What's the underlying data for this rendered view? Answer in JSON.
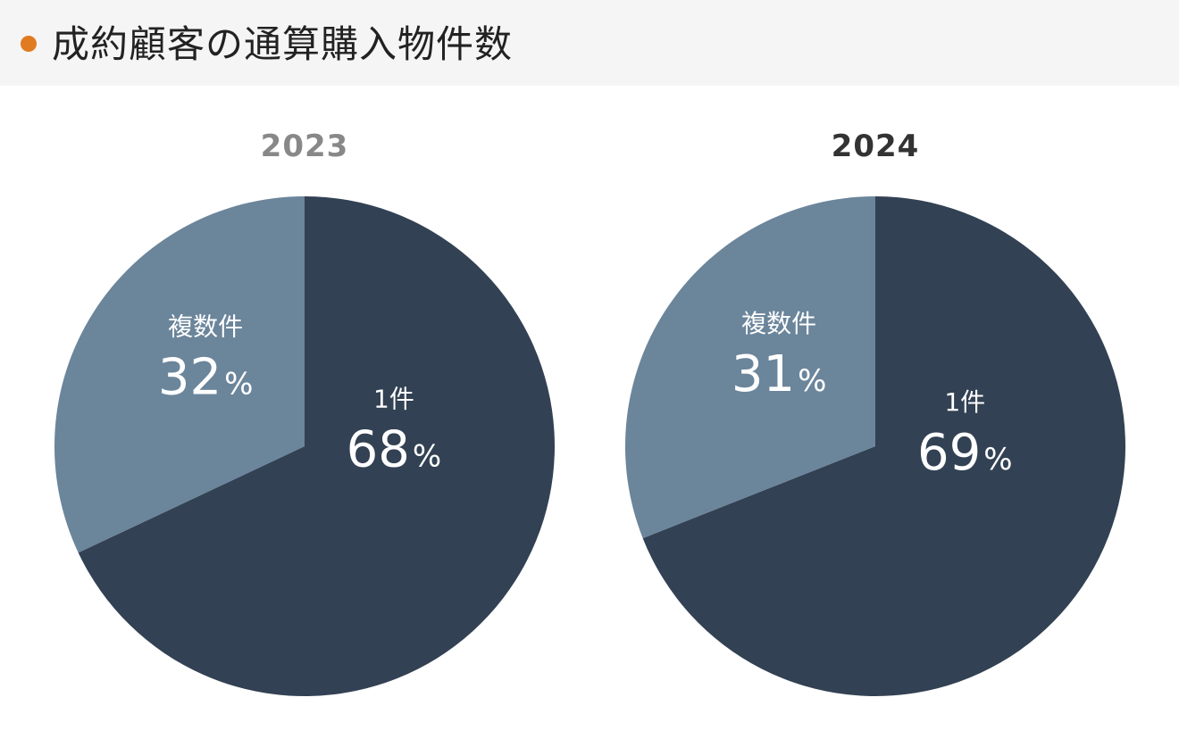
{
  "header": {
    "title": "成約顧客の通算購入物件数",
    "dot_color": "#e07b1f"
  },
  "percent_sign": "%",
  "colors": {
    "single": "#324153",
    "multiple": "#6b859b",
    "year_past": "#888888",
    "year_current": "#333333"
  },
  "chart_data": [
    {
      "type": "pie",
      "title": "2023",
      "slices": [
        {
          "label": "1件",
          "value": 68,
          "display": "68"
        },
        {
          "label": "複数件",
          "value": 32,
          "display": "32"
        }
      ]
    },
    {
      "type": "pie",
      "title": "2024",
      "slices": [
        {
          "label": "1件",
          "value": 69,
          "display": "69"
        },
        {
          "label": "複数件",
          "value": 31,
          "display": "31"
        }
      ]
    }
  ]
}
